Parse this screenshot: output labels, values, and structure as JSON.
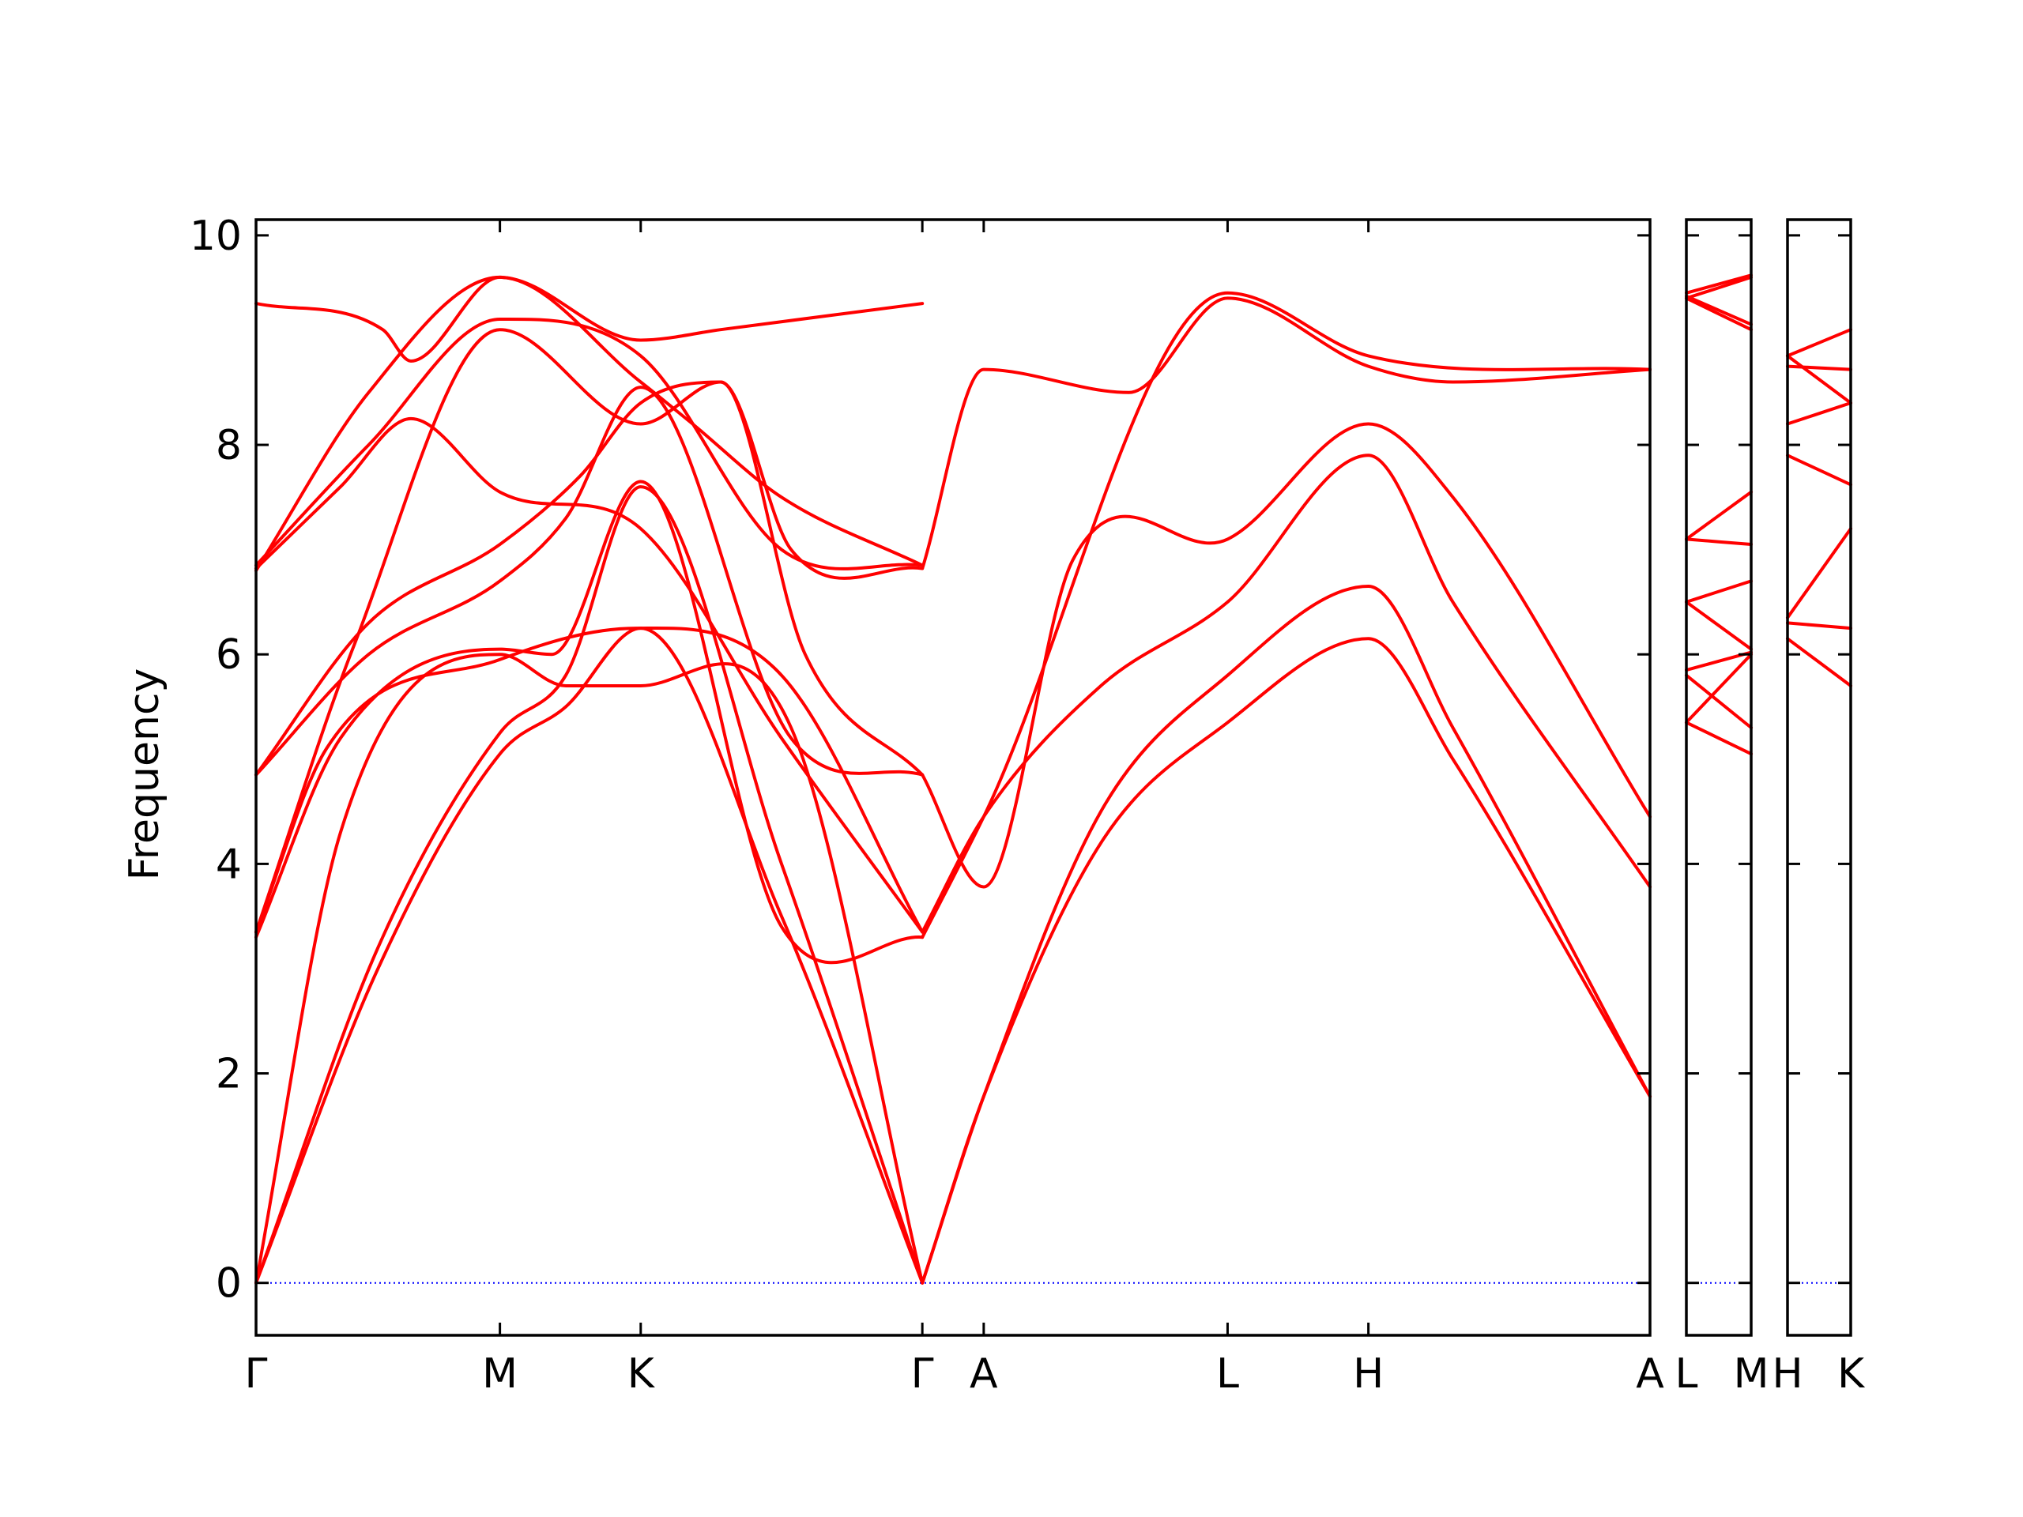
{
  "chart_data": {
    "type": "line",
    "title": "",
    "ylabel": "Frequency",
    "xlabel": "",
    "ylim": [
      -0.5,
      10.15
    ],
    "yticks": [
      0,
      2,
      4,
      6,
      8,
      10
    ],
    "grid": false,
    "zero_line_color": "#0000ff",
    "band_color": "#ff0000",
    "panels": [
      {
        "xticks": [
          "Γ",
          "M",
          "K",
          "Γ",
          "A",
          "L",
          "H",
          "A"
        ],
        "tick_pos": [
          0,
          1.732,
          2.732,
          4.732,
          5.168,
          6.9,
          7.9,
          9.9
        ],
        "bands": [
          {
            "x": [
              0,
              0.866,
              1.732,
              2.2,
              2.732,
              3.732,
              4.732
            ],
            "y": [
              0,
              3.0,
              5.05,
              5.5,
              6.25,
              3.5,
              0
            ]
          },
          {
            "x": [
              0,
              0.866,
              1.732,
              2.2,
              2.732,
              3.732,
              4.732
            ],
            "y": [
              0,
              3.2,
              5.25,
              5.8,
              7.6,
              4.0,
              0
            ]
          },
          {
            "x": [
              0,
              0.6,
              1.732,
              2.2,
              2.732,
              3.8,
              4.732
            ],
            "y": [
              0,
              4.3,
              6.0,
              5.7,
              5.7,
              5.3,
              0
            ]
          },
          {
            "x": [
              0,
              0.5,
              1.732,
              2.7,
              3.732,
              4.732
            ],
            "y": [
              3.35,
              5.1,
              5.95,
              6.25,
              5.8,
              3.35
            ]
          },
          {
            "x": [
              0,
              0.6,
              1.732,
              2.1,
              2.732,
              3.732,
              4.732
            ],
            "y": [
              3.3,
              5.2,
              6.05,
              6.0,
              7.65,
              3.4,
              3.3
            ]
          },
          {
            "x": [
              0,
              0.8,
              1.732,
              2.2,
              2.732,
              3.8,
              4.732
            ],
            "y": [
              4.85,
              6.0,
              6.7,
              7.3,
              8.55,
              5.2,
              4.85
            ]
          },
          {
            "x": [
              0,
              0.8,
              1.732,
              2.3,
              2.732,
              3.3,
              3.9,
              4.732
            ],
            "y": [
              4.85,
              6.3,
              7.05,
              7.7,
              8.4,
              8.6,
              6.0,
              4.85
            ]
          },
          {
            "x": [
              0,
              0.6,
              1.1,
              1.732,
              2.732,
              3.732,
              4.732
            ],
            "y": [
              6.82,
              7.6,
              8.25,
              7.55,
              7.2,
              5.2,
              3.35
            ]
          },
          {
            "x": [
              0,
              0.7,
              1.732,
              2.732,
              3.3,
              3.8,
              4.732
            ],
            "y": [
              3.35,
              6.1,
              9.1,
              8.2,
              8.6,
              7.0,
              6.82
            ]
          },
          {
            "x": [
              0,
              0.8,
              1.732,
              2.732,
              3.732,
              4.732
            ],
            "y": [
              6.85,
              8.0,
              9.2,
              8.85,
              7.0,
              6.85
            ]
          },
          {
            "x": [
              0,
              0.8,
              1.732,
              2.732,
              3.1,
              3.732,
              4.732
            ],
            "y": [
              6.8,
              8.5,
              9.6,
              8.6,
              8.2,
              7.5,
              6.85
            ]
          },
          {
            "x": [
              0,
              0.9,
              1.1,
              1.732,
              2.732,
              3.3,
              4.732
            ],
            "y": [
              9.35,
              9.1,
              8.8,
              9.6,
              9.0,
              9.1,
              9.35
            ]
          },
          {
            "x": [
              4.732,
              5.168,
              6.0,
              6.9,
              7.9,
              8.5,
              9.9
            ],
            "y": [
              0,
              1.78,
              4.2,
              5.35,
              6.15,
              5.0,
              1.78
            ]
          },
          {
            "x": [
              4.732,
              5.168,
              6.0,
              6.9,
              7.9,
              8.5,
              9.9
            ],
            "y": [
              0,
              1.78,
              4.5,
              5.8,
              6.65,
              5.3,
              1.78
            ]
          },
          {
            "x": [
              4.732,
              5.168,
              6.0,
              6.9,
              7.9,
              8.5,
              9.9
            ],
            "y": [
              3.35,
              4.45,
              5.7,
              6.5,
              7.9,
              6.5,
              3.78
            ]
          },
          {
            "x": [
              4.732,
              5.168,
              5.8,
              6.9,
              7.9,
              8.5,
              9.9
            ],
            "y": [
              4.85,
              3.78,
              6.9,
              7.1,
              8.2,
              7.5,
              4.45
            ]
          },
          {
            "x": [
              4.732,
              5.168,
              6.2,
              6.9,
              7.9,
              8.5,
              9.9
            ],
            "y": [
              6.82,
              8.72,
              8.5,
              9.4,
              8.75,
              8.6,
              8.72
            ]
          },
          {
            "x": [
              4.732,
              5.168,
              6.9,
              7.9,
              9.9
            ],
            "y": [
              3.3,
              4.45,
              9.45,
              8.85,
              8.72
            ]
          }
        ]
      },
      {
        "xticks": [
          "L",
          "M"
        ],
        "tick_pos": [
          0,
          1.0
        ],
        "bands": [
          {
            "x": [
              0,
              1.0
            ],
            "y": [
              5.35,
              5.05
            ]
          },
          {
            "x": [
              0,
              1.0
            ],
            "y": [
              5.8,
              5.3
            ]
          },
          {
            "x": [
              0,
              1.0
            ],
            "y": [
              5.35,
              6.0
            ]
          },
          {
            "x": [
              0,
              1.0
            ],
            "y": [
              5.85,
              6.02
            ]
          },
          {
            "x": [
              0,
              1.0
            ],
            "y": [
              6.5,
              6.05
            ]
          },
          {
            "x": [
              0,
              1.0
            ],
            "y": [
              6.5,
              6.7
            ]
          },
          {
            "x": [
              0,
              1.0
            ],
            "y": [
              7.1,
              7.05
            ]
          },
          {
            "x": [
              0,
              1.0
            ],
            "y": [
              7.1,
              7.55
            ]
          },
          {
            "x": [
              0,
              1.0
            ],
            "y": [
              9.4,
              9.1
            ]
          },
          {
            "x": [
              0,
              1.0
            ],
            "y": [
              9.42,
              9.15
            ]
          },
          {
            "x": [
              0,
              1.0
            ],
            "y": [
              9.4,
              9.6
            ]
          },
          {
            "x": [
              0,
              1.0
            ],
            "y": [
              9.45,
              9.62
            ]
          }
        ]
      },
      {
        "xticks": [
          "H",
          "K"
        ],
        "tick_pos": [
          0,
          1.0
        ],
        "bands": [
          {
            "x": [
              0,
              1.0
            ],
            "y": [
              6.15,
              5.7
            ]
          },
          {
            "x": [
              0,
              1.0
            ],
            "y": [
              6.3,
              6.25
            ]
          },
          {
            "x": [
              0,
              1.0
            ],
            "y": [
              6.35,
              7.2
            ]
          },
          {
            "x": [
              0,
              1.0
            ],
            "y": [
              7.9,
              7.62
            ]
          },
          {
            "x": [
              0,
              1.0
            ],
            "y": [
              8.2,
              8.4
            ]
          },
          {
            "x": [
              0,
              1.0
            ],
            "y": [
              8.75,
              8.72
            ]
          },
          {
            "x": [
              0,
              1.0
            ],
            "y": [
              8.85,
              8.4
            ]
          },
          {
            "x": [
              0,
              1.0
            ],
            "y": [
              8.85,
              9.1
            ]
          }
        ]
      }
    ]
  }
}
